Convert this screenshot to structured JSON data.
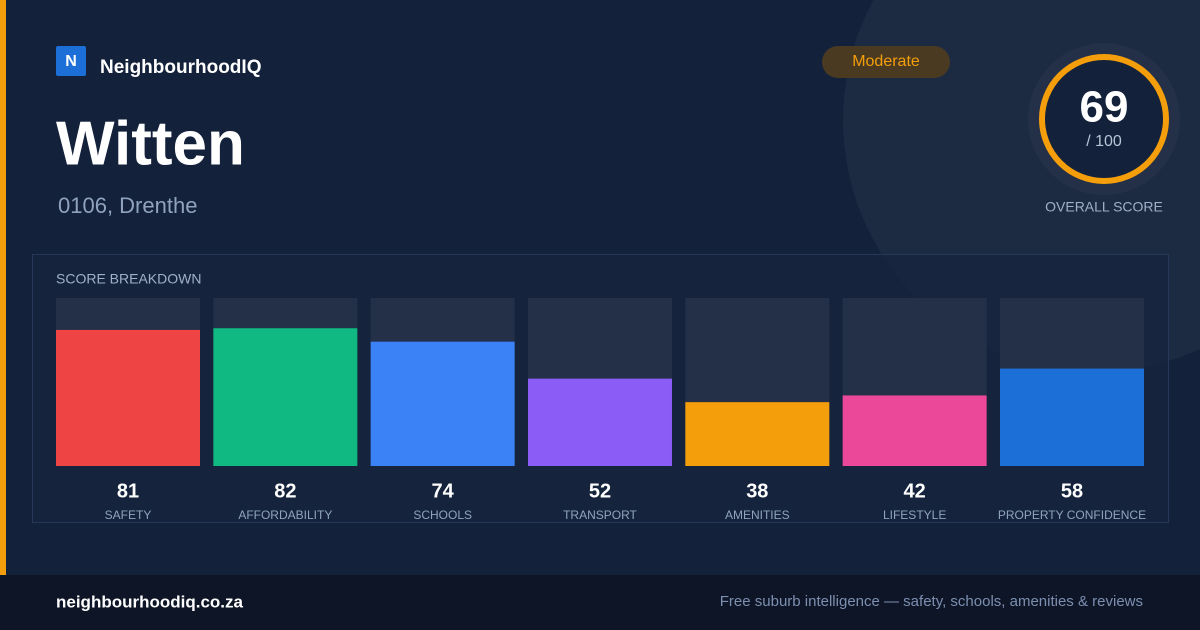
{
  "brand": {
    "logo_letter": "N",
    "name": "NeighbourhoodIQ"
  },
  "header": {
    "title": "Witten",
    "subtitle": "0106, Drenthe",
    "badge": "Moderate"
  },
  "score": {
    "value": 69,
    "max_label": "/ 100",
    "caption": "OVERALL SCORE"
  },
  "chart_data": {
    "type": "bar",
    "title": "SCORE BREAKDOWN",
    "categories": [
      "SAFETY",
      "AFFORDABILITY",
      "SCHOOLS",
      "TRANSPORT",
      "AMENITIES",
      "LIFESTYLE",
      "PROPERTY CONFIDENCE"
    ],
    "values": [
      81,
      82,
      74,
      52,
      38,
      42,
      58
    ],
    "colors": [
      "#ef4444",
      "#10b981",
      "#3b82f6",
      "#8b5cf6",
      "#f59e0b",
      "#ec4899",
      "#1d6fd8"
    ],
    "ylim": [
      0,
      100
    ]
  },
  "footer": {
    "url": "neighbourhoodiq.co.za",
    "tagline": "Free suburb intelligence — safety, schools, amenities & reviews"
  }
}
